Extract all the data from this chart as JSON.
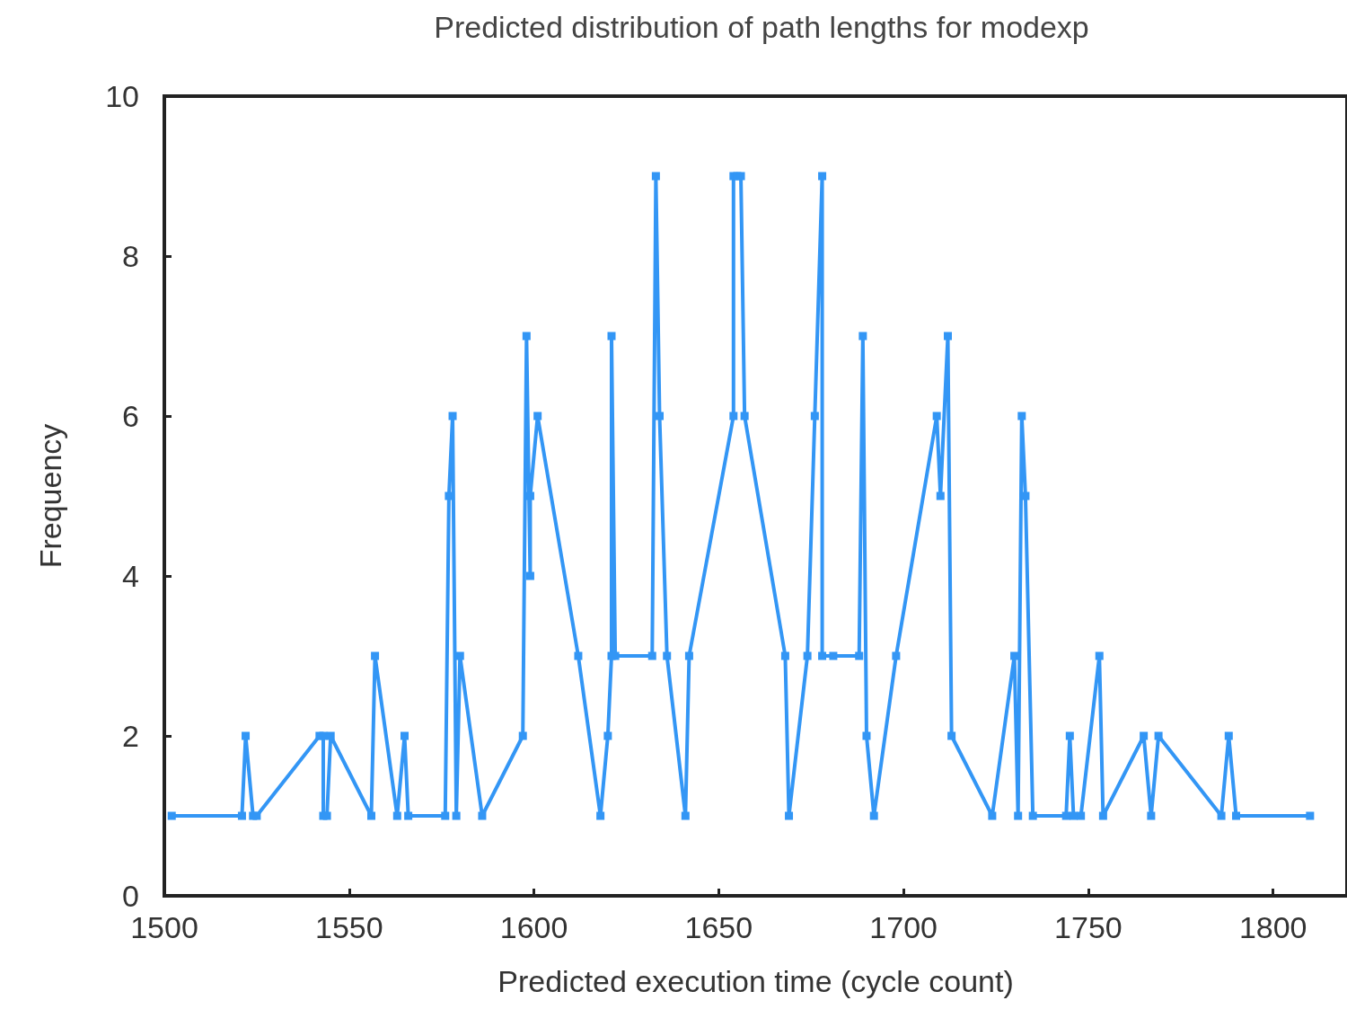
{
  "chart_data": {
    "type": "line",
    "title": "Predicted distribution of path lengths for modexp",
    "xlabel": "Predicted execution time (cycle count)",
    "ylabel": "Frequency",
    "x": [
      1502,
      1521,
      1522,
      1524,
      1525,
      1542,
      1543,
      1543,
      1544,
      1545,
      1556,
      1557,
      1563,
      1565,
      1566,
      1576,
      1577,
      1578,
      1579,
      1580,
      1586,
      1597,
      1598,
      1599,
      1599,
      1601,
      1612,
      1618,
      1620,
      1621,
      1621,
      1622,
      1632,
      1633,
      1634,
      1636,
      1641,
      1642,
      1654,
      1654,
      1655,
      1656,
      1657,
      1668,
      1669,
      1674,
      1676,
      1678,
      1678,
      1681,
      1688,
      1689,
      1690,
      1692,
      1698,
      1709,
      1710,
      1712,
      1713,
      1724,
      1730,
      1731,
      1732,
      1733,
      1735,
      1744,
      1745,
      1746,
      1748,
      1753,
      1754,
      1765,
      1767,
      1769,
      1786,
      1788,
      1790,
      1810
    ],
    "series": [
      {
        "color": "#3396f5",
        "values": [
          1,
          1,
          2,
          1,
          1,
          2,
          2,
          1,
          1,
          2,
          1,
          3,
          1,
          2,
          1,
          1,
          5,
          6,
          1,
          3,
          1,
          2,
          7,
          4,
          5,
          6,
          3,
          1,
          2,
          3,
          7,
          3,
          3,
          9,
          6,
          3,
          1,
          3,
          6,
          9,
          9,
          9,
          6,
          3,
          1,
          3,
          6,
          9,
          3,
          3,
          3,
          7,
          2,
          1,
          3,
          6,
          5,
          7,
          2,
          1,
          3,
          1,
          6,
          5,
          1,
          1,
          2,
          1,
          1,
          3,
          1,
          2,
          1,
          2,
          1,
          2,
          1,
          1
        ]
      }
    ],
    "xlim": [
      1500,
      1820
    ],
    "xticks": [
      1500,
      1550,
      1600,
      1650,
      1700,
      1750,
      1800
    ],
    "ylim": [
      0,
      10
    ],
    "yticks": [
      0,
      2,
      4,
      6,
      8,
      10
    ],
    "grid": false,
    "marker": "square",
    "line_style": "solid"
  }
}
